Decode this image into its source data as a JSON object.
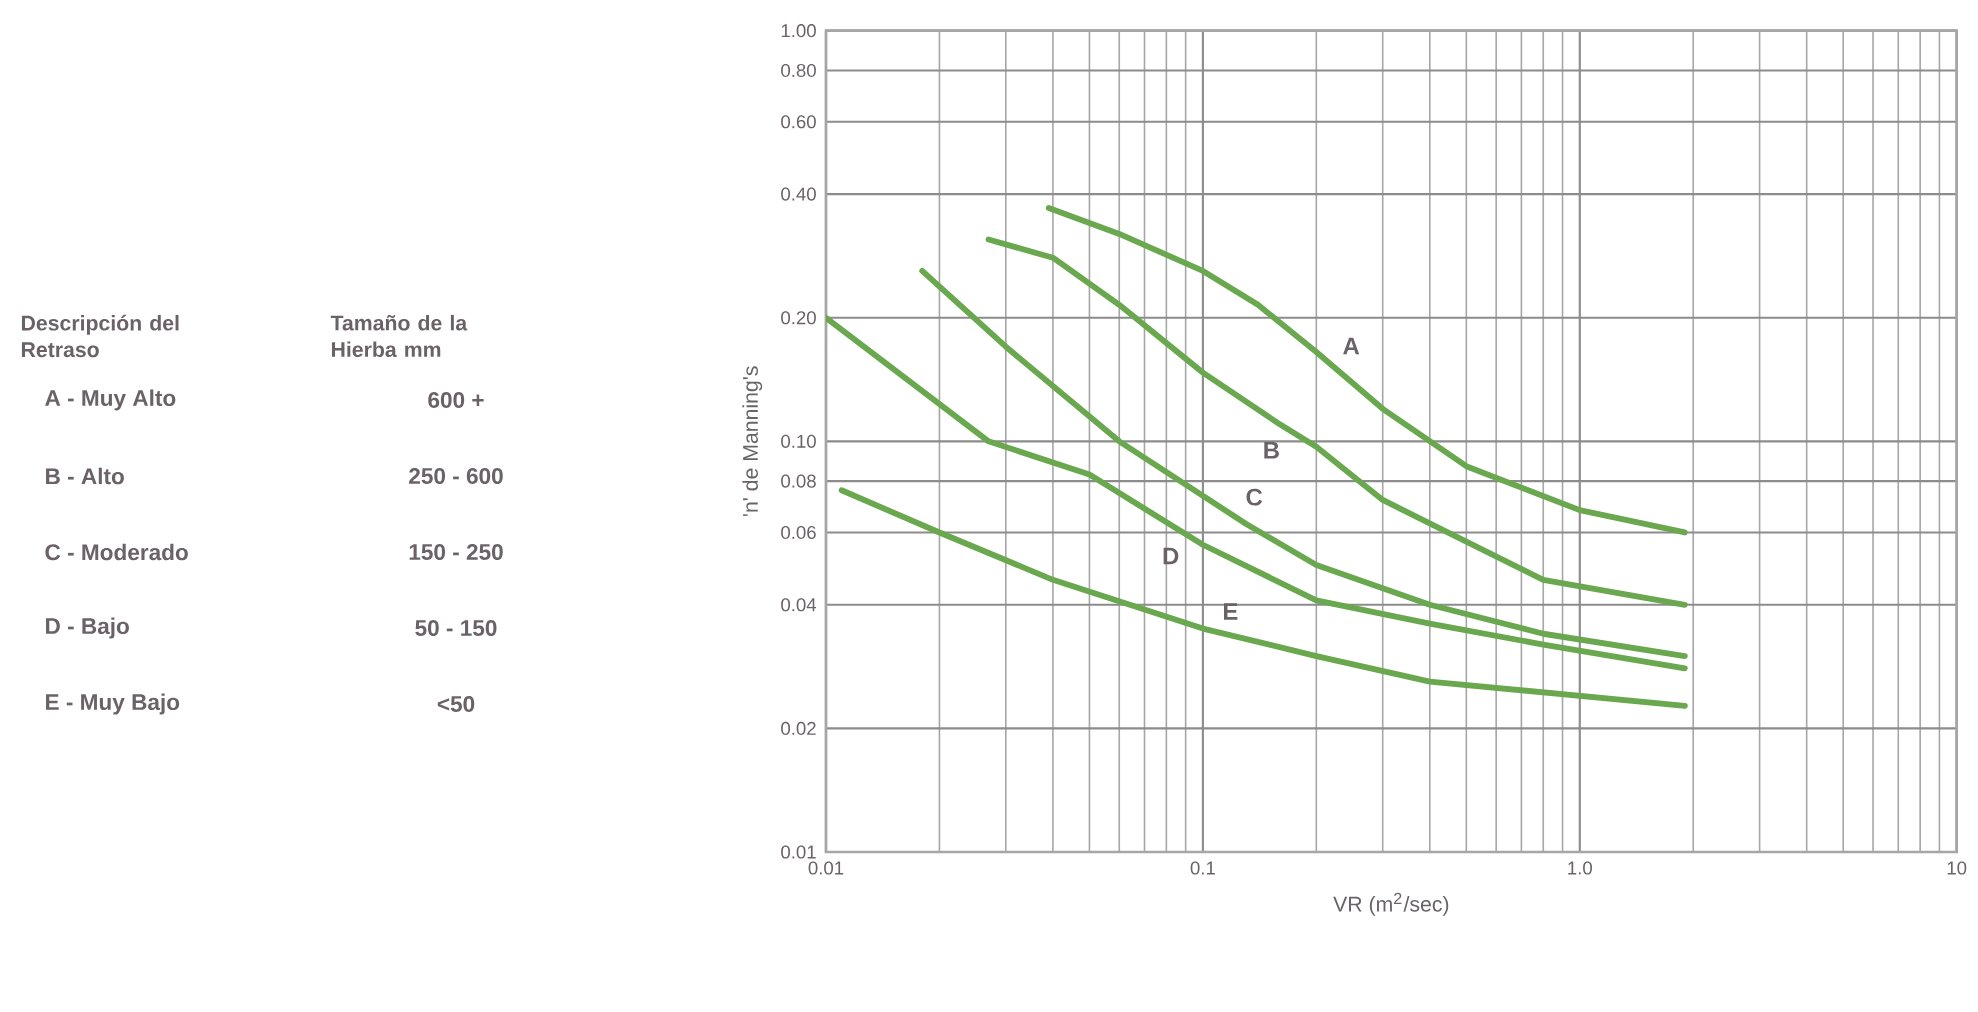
{
  "chart_data": {
    "type": "line",
    "xlabel": "VR (m$^{2}$/sec)",
    "ylabel": "'n' de Manning's",
    "log": "xy",
    "grid": true,
    "xlim": [
      0.01,
      10
    ],
    "xticks": [
      {
        "value": 0.01,
        "label": "0.01"
      },
      {
        "value": 0.1,
        "label": "0.1"
      },
      {
        "value": 1,
        "label": "1.0"
      },
      10
    ],
    "ylim": [
      0.01,
      1
    ],
    "yticks": [
      {
        "value": 0.01,
        "label": "0.01"
      },
      {
        "value": 0.02,
        "label": "0.02"
      },
      {
        "value": 0.04,
        "label": "0.04"
      },
      {
        "value": 0.06,
        "label": "0.06"
      },
      {
        "value": 0.08,
        "label": "0.08"
      },
      {
        "value": 0.1,
        "label": "0.10"
      },
      {
        "value": 0.2,
        "label": "0.20"
      },
      {
        "value": 0.4,
        "label": "0.40"
      },
      {
        "value": 0.6,
        "label": "0.60"
      },
      {
        "value": 0.8,
        "label": "0.80"
      },
      {
        "value": 1,
        "label": "1.00"
      }
    ],
    "series": [
      {
        "name": "A",
        "color": "#6aa84f",
        "x": [
          0.039,
          0.06,
          0.1,
          0.14,
          0.2,
          0.3,
          0.5,
          1.0,
          1.9
        ],
        "values": [
          0.37,
          0.32,
          0.26,
          0.215,
          0.165,
          0.12,
          0.087,
          0.068,
          0.06
        ]
      },
      {
        "name": "B",
        "color": "#6aa84f",
        "x": [
          0.027,
          0.04,
          0.06,
          0.1,
          0.16,
          0.2,
          0.3,
          0.5,
          0.8,
          1.9
        ],
        "values": [
          0.31,
          0.28,
          0.215,
          0.147,
          0.11,
          0.097,
          0.072,
          0.057,
          0.046,
          0.04
        ]
      },
      {
        "name": "C",
        "color": "#6aa84f",
        "x": [
          0.018,
          0.03,
          0.06,
          0.13,
          0.2,
          0.4,
          0.8,
          1.9
        ],
        "values": [
          0.26,
          0.17,
          0.1,
          0.063,
          0.05,
          0.04,
          0.034,
          0.03
        ]
      },
      {
        "name": "D",
        "color": "#6aa84f",
        "x": [
          0.01,
          0.027,
          0.05,
          0.1,
          0.2,
          0.4,
          0.8,
          1.9
        ],
        "values": [
          0.2,
          0.1,
          0.083,
          0.056,
          0.041,
          0.036,
          0.032,
          0.028
        ]
      },
      {
        "name": "E",
        "color": "#6aa84f",
        "x": [
          0.011,
          0.02,
          0.04,
          0.1,
          0.2,
          0.4,
          1.9
        ],
        "values": [
          0.076,
          0.06,
          0.046,
          0.035,
          0.03,
          0.026,
          0.0227
        ]
      }
    ],
    "annotations": [
      "Descripción del Retraso",
      "Tamaño de la Hierba mm",
      "A - Muy Alto",
      "600 +",
      "B - Alto",
      "250 - 600",
      "C - Moderado",
      "150 - 250",
      "D - Bajo",
      "50 - 150",
      "E - Muy Bajo",
      "<50"
    ]
  }
}
